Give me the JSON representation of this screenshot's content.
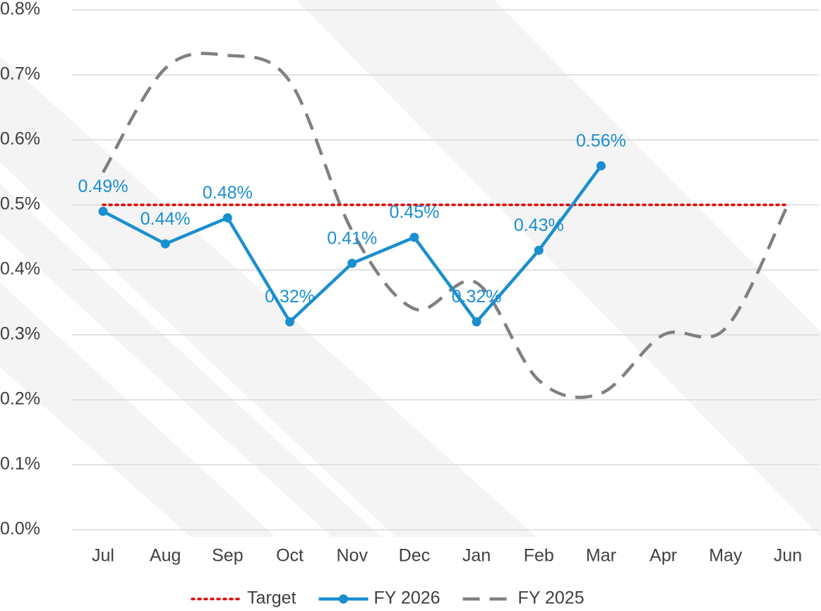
{
  "chart_data": {
    "type": "line",
    "categories": [
      "Jul",
      "Aug",
      "Sep",
      "Oct",
      "Nov",
      "Dec",
      "Jan",
      "Feb",
      "Mar",
      "Apr",
      "May",
      "Jun"
    ],
    "series": [
      {
        "name": "Target",
        "color": "#e00000",
        "style": "dotted",
        "values": [
          0.5,
          0.5,
          0.5,
          0.5,
          0.5,
          0.5,
          0.5,
          0.5,
          0.5,
          0.5,
          0.5,
          0.5
        ]
      },
      {
        "name": "FY 2026",
        "color": "#1a8fcf",
        "style": "solid",
        "markers": true,
        "values": [
          0.49,
          0.44,
          0.48,
          0.32,
          0.41,
          0.45,
          0.32,
          0.43,
          0.56,
          null,
          null,
          null
        ],
        "value_labels": [
          "0.49%",
          "0.44%",
          "0.48%",
          "0.32%",
          "0.41%",
          "0.45%",
          "0.32%",
          "0.43%",
          "0.56%",
          null,
          null,
          null
        ]
      },
      {
        "name": "FY 2025",
        "color": "#808080",
        "style": "dashed",
        "smooth": true,
        "values": [
          0.55,
          0.71,
          0.73,
          0.69,
          0.46,
          0.34,
          0.38,
          0.23,
          0.21,
          0.3,
          0.31,
          0.5
        ]
      }
    ],
    "ylim": [
      0,
      0.8
    ],
    "yticks": [
      {
        "value": 0,
        "label": "0.0%"
      },
      {
        "value": 0.1,
        "label": "0.1%"
      },
      {
        "value": 0.2,
        "label": "0.2%"
      },
      {
        "value": 0.3,
        "label": "0.3%"
      },
      {
        "value": 0.4,
        "label": "0.4%"
      },
      {
        "value": 0.5,
        "label": "0.5%"
      },
      {
        "value": 0.6,
        "label": "0.6%"
      },
      {
        "value": 0.7,
        "label": "0.7%"
      },
      {
        "value": 0.8,
        "label": "0.8%"
      }
    ],
    "grid": true,
    "legend": "bottom"
  }
}
